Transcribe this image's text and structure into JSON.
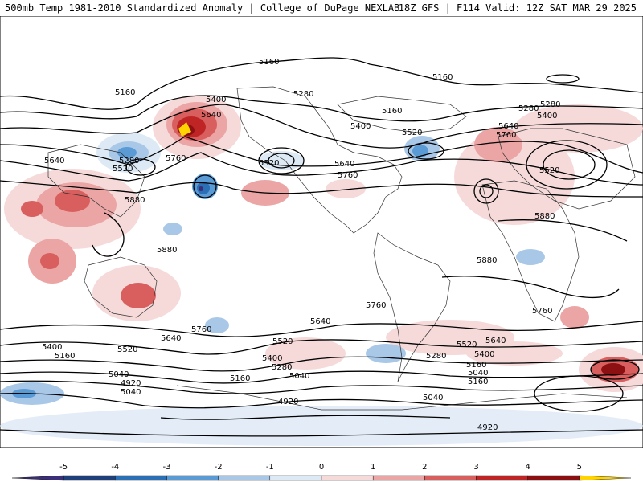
{
  "header": {
    "left": "500mb Temp 1981-2010 Standardized Anomaly | College of DuPage NEXLAB",
    "right": "18Z GFS | F114 Valid: 12Z SAT MAR 29 2025"
  },
  "legend": {
    "ticks": [
      "-5",
      "-4",
      "-3",
      "-2",
      "-1",
      "0",
      "1",
      "2",
      "3",
      "4",
      "5"
    ],
    "colors": [
      "#3b2f7a",
      "#1f3f7a",
      "#2b6fb5",
      "#5a9bd6",
      "#a9c8e8",
      "#dde9f5",
      "#f6dada",
      "#eba5a5",
      "#d95f5f",
      "#c02525",
      "#8c0f12",
      "#ffd400"
    ]
  },
  "contour_labels": [
    {
      "text": "5160",
      "id": "l1"
    },
    {
      "text": "5160",
      "id": "l2"
    },
    {
      "text": "5160",
      "id": "l3"
    },
    {
      "text": "5160",
      "id": "l4"
    },
    {
      "text": "5280",
      "id": "l5"
    },
    {
      "text": "5280",
      "id": "l6"
    },
    {
      "text": "5400",
      "id": "l7"
    },
    {
      "text": "5640",
      "id": "l8"
    },
    {
      "text": "5760",
      "id": "l9"
    },
    {
      "text": "5280",
      "id": "l10"
    },
    {
      "text": "5520",
      "id": "l11"
    },
    {
      "text": "5640",
      "id": "l12"
    },
    {
      "text": "5520",
      "id": "l13"
    },
    {
      "text": "5400",
      "id": "l14"
    },
    {
      "text": "5640",
      "id": "l15"
    },
    {
      "text": "5760",
      "id": "l16"
    },
    {
      "text": "5520",
      "id": "l17"
    },
    {
      "text": "5280",
      "id": "l18"
    },
    {
      "text": "5400",
      "id": "l19"
    },
    {
      "text": "5640",
      "id": "l20"
    },
    {
      "text": "5760",
      "id": "l21"
    },
    {
      "text": "5520",
      "id": "l22"
    },
    {
      "text": "5880",
      "id": "l23"
    },
    {
      "text": "5880",
      "id": "l24"
    },
    {
      "text": "5880",
      "id": "l25"
    },
    {
      "text": "5880",
      "id": "l26"
    },
    {
      "text": "5760",
      "id": "l27"
    },
    {
      "text": "5760",
      "id": "l28"
    },
    {
      "text": "5760",
      "id": "l29"
    },
    {
      "text": "5640",
      "id": "l30"
    },
    {
      "text": "5640",
      "id": "l31"
    },
    {
      "text": "5640",
      "id": "l32"
    },
    {
      "text": "5520",
      "id": "l33"
    },
    {
      "text": "5520",
      "id": "l34"
    },
    {
      "text": "5520",
      "id": "l35"
    },
    {
      "text": "5400",
      "id": "l36"
    },
    {
      "text": "5400",
      "id": "l37"
    },
    {
      "text": "5400",
      "id": "l38"
    },
    {
      "text": "5160",
      "id": "l39"
    },
    {
      "text": "5280",
      "id": "l40"
    },
    {
      "text": "5160",
      "id": "l41"
    },
    {
      "text": "5040",
      "id": "l42"
    },
    {
      "text": "5040",
      "id": "l43"
    },
    {
      "text": "4920",
      "id": "l44"
    },
    {
      "text": "5160",
      "id": "l45"
    },
    {
      "text": "5040",
      "id": "l46"
    },
    {
      "text": "5280",
      "id": "l47"
    },
    {
      "text": "5160",
      "id": "l48"
    },
    {
      "text": "5040",
      "id": "l49"
    },
    {
      "text": "5040",
      "id": "l50"
    },
    {
      "text": "4920",
      "id": "l51"
    },
    {
      "text": "4920",
      "id": "l52"
    }
  ]
}
